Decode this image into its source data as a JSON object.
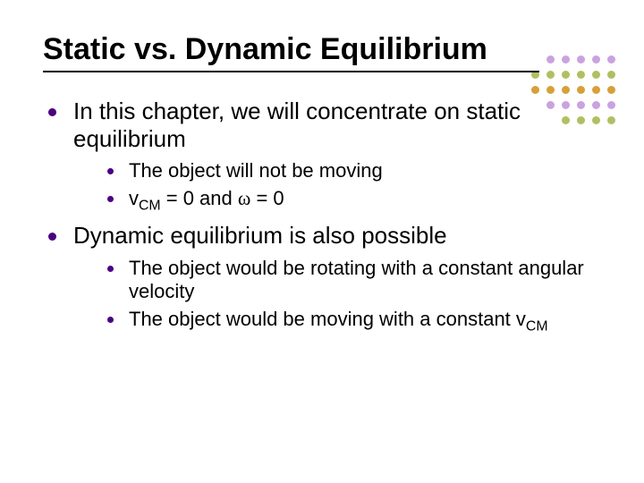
{
  "title": "Static vs. Dynamic Equilibrium",
  "bullets": {
    "b1": "In this chapter, we will concentrate on static equilibrium",
    "b1s1": "The object will not be moving",
    "b1s2_pre": "v",
    "b1s2_sub": "CM",
    "b1s2_mid": " = 0 and ",
    "b1s2_omega": "ω",
    "b1s2_post": " = 0",
    "b2": "Dynamic equilibrium is also possible",
    "b2s1": "The object would be rotating with a constant angular velocity",
    "b2s2_pre": "The object would be moving with a constant v",
    "b2s2_sub": "CM"
  },
  "decor": {
    "rows": [
      {
        "count": 5,
        "color": "#c9a3e0"
      },
      {
        "count": 6,
        "color": "#b1bf62"
      },
      {
        "count": 6,
        "color": "#d6a03a"
      },
      {
        "count": 5,
        "color": "#c9a3e0"
      },
      {
        "count": 4,
        "color": "#b1bf62"
      }
    ],
    "dot_size": 9,
    "gap": 8
  },
  "colors": {
    "bullet": "#4b0082",
    "text": "#000000",
    "underline": "#000000",
    "background": "#ffffff"
  }
}
